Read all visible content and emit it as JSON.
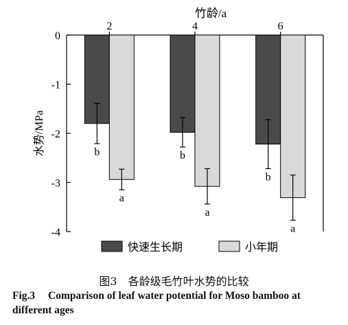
{
  "chart_data": {
    "type": "bar",
    "xlabel": "竹龄/a",
    "ylabel": "水势/MPa",
    "categories": [
      "2",
      "4",
      "6"
    ],
    "ylim": [
      -4,
      0
    ],
    "yticks": [
      "0",
      "-1",
      "-2",
      "-3",
      "-4"
    ],
    "series": [
      {
        "name": "快速生长期",
        "color": "#4a4a4a",
        "values": [
          -1.8,
          -1.98,
          -2.22
        ],
        "errors": [
          0.41,
          0.3,
          0.5
        ],
        "letters": [
          "b",
          "b",
          "b"
        ]
      },
      {
        "name": "小年期",
        "color": "#d9d9d9",
        "values": [
          -2.94,
          -3.08,
          -3.31
        ],
        "errors": [
          0.21,
          0.36,
          0.46
        ],
        "letters": [
          "a",
          "a",
          "a"
        ]
      }
    ],
    "legend_position": "bottom"
  },
  "caption": {
    "cn": "图3　各龄级毛竹叶水势的比较",
    "en_number": "Fig.3",
    "en_line1": "Comparison of leaf water potential for Moso bamboo",
    "en_line2": "at different ages"
  }
}
